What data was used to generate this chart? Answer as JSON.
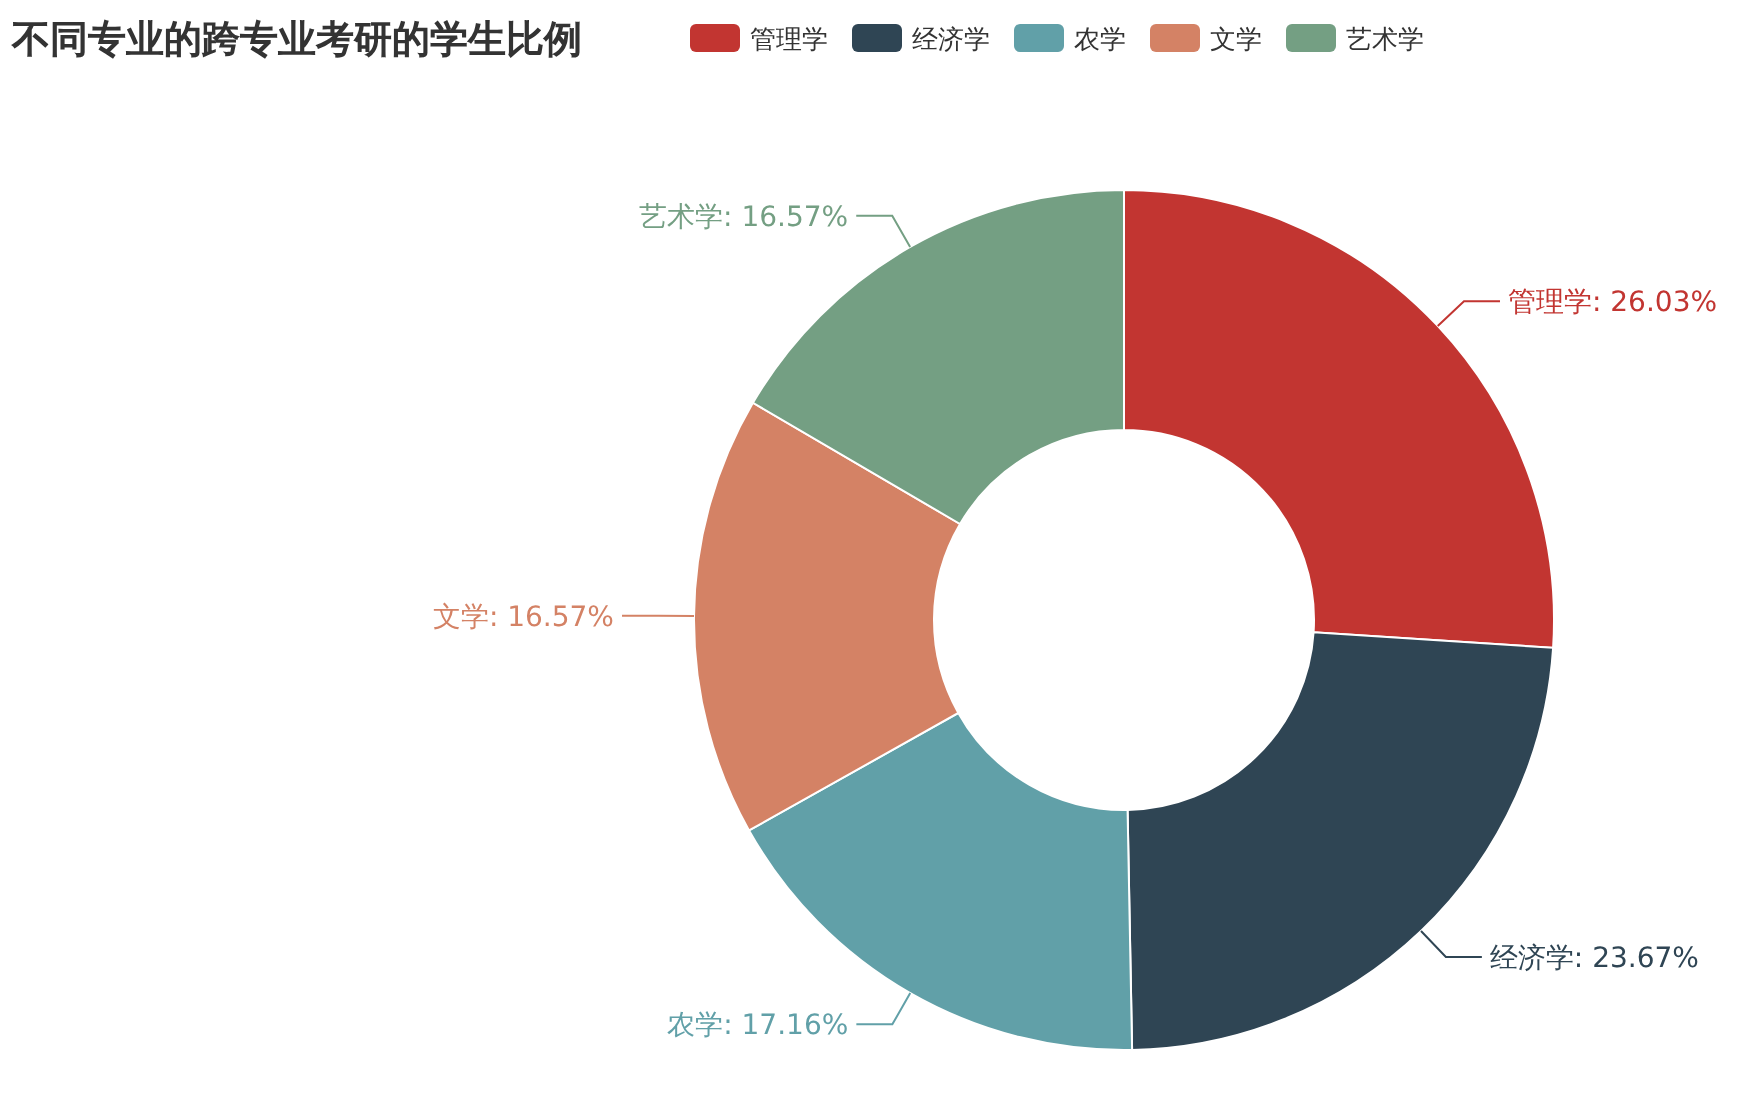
{
  "chart_data": {
    "type": "donut",
    "title": "不同专业的跨专业考研的学生比例",
    "categories": [
      "管理学",
      "经济学",
      "农学",
      "文学",
      "艺术学"
    ],
    "values": [
      26.03,
      23.67,
      17.16,
      16.57,
      16.57
    ],
    "colors": [
      "#c23531",
      "#2f4554",
      "#61a0a8",
      "#d48265",
      "#749f83"
    ],
    "value_labels": [
      "管理学: 26.03%",
      "经济学: 23.67%",
      "农学: 17.16%",
      "文学: 16.57%",
      "艺术学: 16.57%"
    ],
    "legend": "top"
  }
}
